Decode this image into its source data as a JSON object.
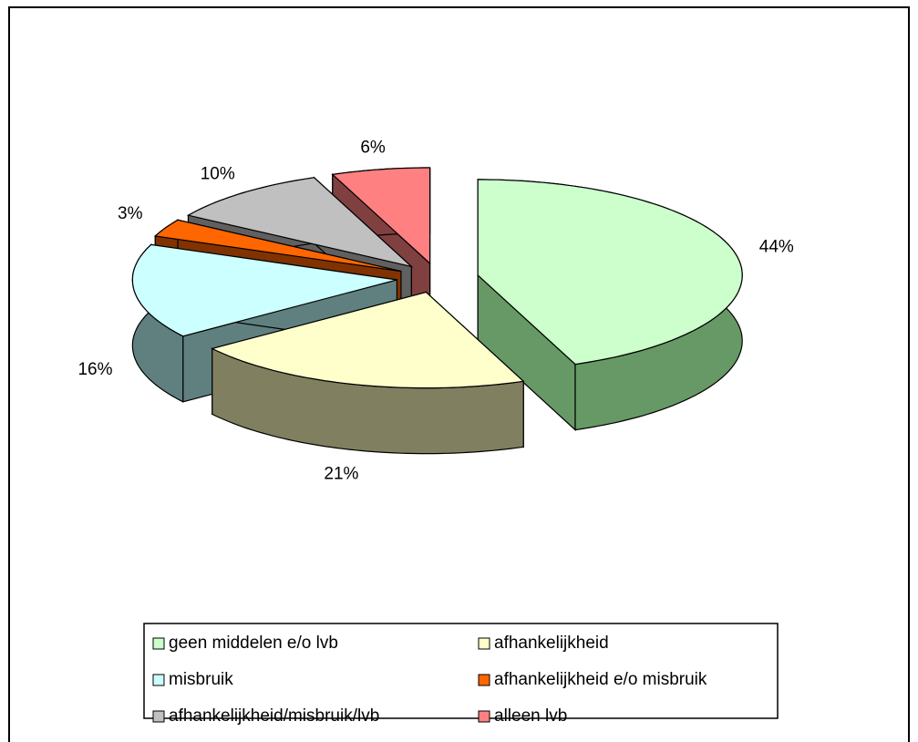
{
  "chart_data": {
    "type": "pie3d",
    "categories": [
      "geen middelen e/o lvb",
      "afhankelijkheid",
      "misbruik",
      "afhankelijkheid e/o misbruik",
      "afhankelijkheid/misbruik/lvb",
      "alleen lvb"
    ],
    "values": [
      44,
      21,
      16,
      3,
      10,
      6
    ],
    "value_labels": [
      "44%",
      "21%",
      "16%",
      "3%",
      "10%",
      "6%"
    ],
    "colors": [
      "#ccffcc",
      "#ffffcc",
      "#ccffff",
      "#ff6600",
      "#c0c0c0",
      "#ff8080"
    ],
    "side_colors": [
      "#669966",
      "#808060",
      "#608080",
      "#803300",
      "#606060",
      "#804040"
    ],
    "legend": "bottom"
  }
}
